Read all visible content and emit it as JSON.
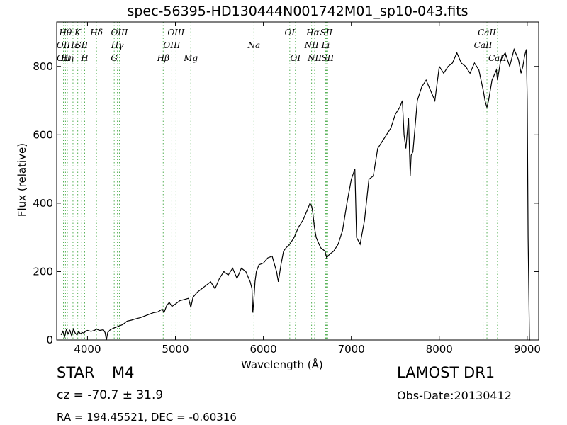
{
  "title": "spec-56395-HD130444N001742M01_sp10-043.fits",
  "object_class": "STAR",
  "subclass": "M4",
  "survey": "LAMOST DR1",
  "redshift_text": "cz = -70.7  ± 31.9",
  "obs_date": "Obs-Date:20130412",
  "coords": "RA = 194.45521, DEC = -0.60316",
  "chart_data": {
    "type": "line",
    "title": "spec-56395-HD130444N001742M01_sp10-043.fits",
    "xlabel": "Wavelength (Å)",
    "ylabel": "Flux (relative)",
    "xlim": [
      3650,
      9130
    ],
    "ylim": [
      0,
      930
    ],
    "xticks": [
      4000,
      5000,
      6000,
      7000,
      8000,
      9000
    ],
    "yticks": [
      0,
      200,
      400,
      600,
      800
    ],
    "grid": false,
    "series": [
      {
        "x": [
          3700,
          3720,
          3740,
          3760,
          3780,
          3800,
          3820,
          3840,
          3860,
          3880,
          3900,
          3920,
          3940,
          3960,
          3980,
          4000,
          4040,
          4080,
          4100,
          4140,
          4180,
          4200,
          4215,
          4230,
          4260,
          4300,
          4350,
          4400,
          4450,
          4500,
          4550,
          4600,
          4650,
          4700,
          4750,
          4800,
          4850,
          4870,
          4900,
          4930,
          4960,
          5000,
          5050,
          5100,
          5150,
          5175,
          5200,
          5250,
          5300,
          5350,
          5400,
          5450,
          5500,
          5550,
          5600,
          5650,
          5700,
          5750,
          5800,
          5850,
          5870,
          5880,
          5893,
          5905,
          5920,
          5950,
          6000,
          6050,
          6100,
          6150,
          6170,
          6200,
          6230,
          6260,
          6300,
          6350,
          6400,
          6450,
          6500,
          6530,
          6550,
          6563,
          6580,
          6600,
          6650,
          6700,
          6720,
          6750,
          6800,
          6850,
          6900,
          6950,
          7000,
          7040,
          7060,
          7100,
          7150,
          7200,
          7250,
          7300,
          7350,
          7400,
          7450,
          7500,
          7550,
          7580,
          7600,
          7620,
          7650,
          7670,
          7680,
          7700,
          7750,
          7800,
          7850,
          7900,
          7950,
          8000,
          8050,
          8100,
          8150,
          8200,
          8250,
          8300,
          8350,
          8400,
          8450,
          8500,
          8520,
          8542,
          8560,
          8600,
          8650,
          8662,
          8680,
          8700,
          8750,
          8800,
          8850,
          8900,
          8930,
          8950,
          8970,
          8990,
          9000,
          9010,
          9025,
          9035
        ],
        "y": [
          15,
          25,
          10,
          30,
          18,
          28,
          12,
          32,
          20,
          15,
          25,
          18,
          22,
          20,
          26,
          28,
          25,
          28,
          32,
          28,
          30,
          22,
          0,
          22,
          30,
          35,
          40,
          45,
          55,
          58,
          62,
          65,
          70,
          75,
          80,
          82,
          90,
          80,
          100,
          110,
          98,
          105,
          115,
          118,
          122,
          95,
          125,
          140,
          150,
          160,
          170,
          150,
          180,
          200,
          190,
          210,
          180,
          210,
          200,
          170,
          150,
          80,
          120,
          170,
          200,
          220,
          225,
          240,
          245,
          200,
          170,
          220,
          260,
          270,
          280,
          300,
          330,
          350,
          380,
          400,
          390,
          370,
          330,
          300,
          270,
          260,
          240,
          250,
          260,
          280,
          320,
          400,
          470,
          500,
          300,
          280,
          350,
          470,
          480,
          560,
          580,
          600,
          620,
          660,
          680,
          700,
          600,
          560,
          650,
          480,
          540,
          550,
          700,
          740,
          760,
          730,
          700,
          800,
          780,
          800,
          810,
          840,
          810,
          800,
          780,
          810,
          790,
          730,
          700,
          680,
          700,
          760,
          790,
          760,
          790,
          820,
          840,
          800,
          850,
          820,
          780,
          800,
          830,
          850,
          700,
          300,
          0,
          0
        ]
      }
    ],
    "line_markers": [
      {
        "wl": 3727,
        "label": "OII",
        "tier": 2
      },
      {
        "wl": 3729,
        "label": "OII",
        "tier": 3
      },
      {
        "wl": 3750,
        "label": "Hθ",
        "tier": 1
      },
      {
        "wl": 3771,
        "label": "Hη",
        "tier": 3
      },
      {
        "wl": 3835,
        "label": "Hε",
        "tier": 2
      },
      {
        "wl": 3889,
        "label": "K",
        "tier": 1
      },
      {
        "wl": 3934,
        "label": "SII",
        "tier": 2
      },
      {
        "wl": 3968,
        "label": "H",
        "tier": 3
      },
      {
        "wl": 4102,
        "label": "Hδ",
        "tier": 1
      },
      {
        "wl": 4304,
        "label": "G",
        "tier": 3
      },
      {
        "wl": 4340,
        "label": "Hγ",
        "tier": 2
      },
      {
        "wl": 4363,
        "label": "OIII",
        "tier": 1
      },
      {
        "wl": 4861,
        "label": "Hβ",
        "tier": 3
      },
      {
        "wl": 4959,
        "label": "OIII",
        "tier": 2
      },
      {
        "wl": 5007,
        "label": "OIII",
        "tier": 1
      },
      {
        "wl": 5175,
        "label": "Mg",
        "tier": 3
      },
      {
        "wl": 5893,
        "label": "Na",
        "tier": 2
      },
      {
        "wl": 6300,
        "label": "OI",
        "tier": 1
      },
      {
        "wl": 6364,
        "label": "OI",
        "tier": 3
      },
      {
        "wl": 6548,
        "label": "NII",
        "tier": 2
      },
      {
        "wl": 6563,
        "label": "Hα",
        "tier": 1
      },
      {
        "wl": 6583,
        "label": "NII",
        "tier": 3
      },
      {
        "wl": 6708,
        "label": "Li",
        "tier": 2
      },
      {
        "wl": 6716,
        "label": "SII",
        "tier": 1
      },
      {
        "wl": 6731,
        "label": "SII",
        "tier": 3
      },
      {
        "wl": 8498,
        "label": "CaII",
        "tier": 2
      },
      {
        "wl": 8542,
        "label": "CaII",
        "tier": 1
      },
      {
        "wl": 8662,
        "label": "CaII",
        "tier": 3
      }
    ]
  }
}
